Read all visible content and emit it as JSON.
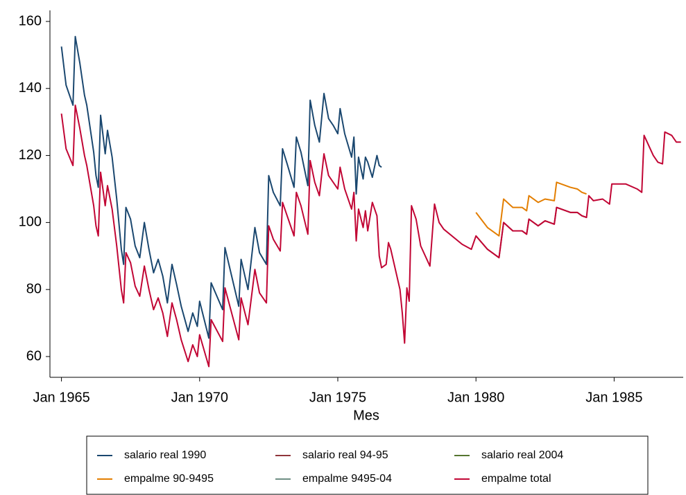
{
  "chart_data": {
    "type": "line",
    "x_label": "Mes",
    "x": [
      "Jan 1965",
      "Mar 1965",
      "Jun 1965",
      "Jul 1965",
      "Sep 1965",
      "Nov 1965",
      "Dec 1965",
      "Mar 1966",
      "Apr 1966",
      "May 1966",
      "Jun 1966",
      "Aug 1966",
      "Sep 1966",
      "Nov 1966",
      "Jan 1967",
      "Mar 1967",
      "Apr 1967",
      "May 1967",
      "Jul 1967",
      "Sep 1967",
      "Nov 1967",
      "Jan 1968",
      "Mar 1968",
      "May 1968",
      "Jul 1968",
      "Sep 1968",
      "Nov 1968",
      "Jan 1969",
      "Mar 1969",
      "May 1969",
      "Aug 1969",
      "Oct 1969",
      "Dec 1969",
      "Jan 1970",
      "May 1970",
      "Jun 1970",
      "Nov 1970",
      "Dec 1970",
      "Jun 1971",
      "Jul 1971",
      "Oct 1971",
      "Jan 1972",
      "Mar 1972",
      "Jun 1972",
      "Jul 1972",
      "Sep 1972",
      "Dec 1972",
      "Jan 1973",
      "Mar 1973",
      "Jun 1973",
      "Jul 1973",
      "Sep 1973",
      "Dec 1973",
      "Jan 1974",
      "Mar 1974",
      "May 1974",
      "Jul 1974",
      "Sep 1974",
      "Nov 1974",
      "Jan 1975",
      "Feb 1975",
      "Apr 1975",
      "Jul 1975",
      "Aug 1975",
      "Sep 1975",
      "Oct 1975",
      "Dec 1975",
      "Jan 1976",
      "Feb 1976",
      "Apr 1976",
      "Jun 1976",
      "Jul 1976",
      "Aug 1976",
      "Oct 1976",
      "Nov 1976",
      "Dec 1976",
      "Apr 1977",
      "May 1977",
      "Jun 1977",
      "Jul 1977",
      "Aug 1977",
      "Sep 1977",
      "Nov 1977",
      "Jan 1978",
      "May 1978",
      "Jul 1978",
      "Sep 1978",
      "Nov 1978",
      "Jul 1979",
      "Nov 1979",
      "Jan 1980",
      "Jun 1980",
      "Nov 1980",
      "Jan 1981",
      "May 1981",
      "Sep 1981",
      "Nov 1981",
      "Dec 1981",
      "Apr 1982",
      "Jul 1982",
      "Nov 1982",
      "Dec 1982",
      "Jun 1983",
      "Sep 1983",
      "Nov 1983",
      "Jan 1984",
      "Feb 1984",
      "Apr 1984",
      "Aug 1984",
      "Nov 1984",
      "Dec 1984",
      "Jun 1985",
      "Nov 1985",
      "Jan 1986",
      "Feb 1986",
      "Jun 1986",
      "Aug 1986",
      "Oct 1986",
      "Nov 1986",
      "Feb 1987",
      "Apr 1987",
      "Jun 1987"
    ],
    "xlim": [
      "Aug 1964",
      "Jul 1987"
    ],
    "xticks": [
      "Jan 1965",
      "Jan 1970",
      "Jan 1975",
      "Jan 1980",
      "Jan 1985"
    ],
    "ylim": [
      53.8,
      163.3
    ],
    "yticks": [
      60,
      80,
      100,
      120,
      140,
      160
    ],
    "grid": false,
    "series": [
      {
        "name": "salario real 1990",
        "color": "#1a476f",
        "values": [
          152.5,
          141,
          135,
          155.5,
          147.5,
          138,
          135,
          121,
          114,
          110.5,
          132,
          120.5,
          127.5,
          119.5,
          107,
          92,
          87.5,
          104.5,
          101,
          93,
          89.5,
          100,
          92,
          85,
          89,
          84,
          76,
          87.5,
          81.5,
          75,
          67.5,
          73,
          69,
          76.5,
          65.5,
          82,
          74,
          92.5,
          75,
          89,
          80,
          98.5,
          91,
          87.5,
          114,
          109,
          105,
          122,
          117.5,
          110.5,
          125.5,
          121,
          111,
          136.5,
          129,
          124,
          138.5,
          131,
          129,
          126.5,
          134,
          126.5,
          119.5,
          125.5,
          108.5,
          119.5,
          113,
          119.5,
          118,
          113.5,
          120,
          117,
          116.5,
          null,
          null,
          null,
          null,
          null,
          null,
          null,
          null,
          null,
          null,
          null,
          null,
          null,
          null,
          null,
          null,
          null,
          null,
          null,
          null,
          null,
          null,
          null,
          null,
          null,
          null,
          null,
          null,
          null,
          null,
          null,
          null,
          null,
          null,
          null,
          null,
          null,
          null,
          null,
          null,
          null,
          null,
          null,
          null,
          null,
          null,
          null,
          null,
          null
        ]
      },
      {
        "name": "salario real 94-95",
        "color": "#90353b",
        "values": [
          null,
          null,
          null,
          null,
          null,
          null,
          null,
          null,
          null,
          null,
          null,
          null,
          null,
          null,
          null,
          null,
          null,
          null,
          null,
          null,
          null,
          null,
          null,
          null,
          null,
          null,
          null,
          null,
          null,
          null,
          null,
          null,
          null,
          null,
          null,
          null,
          null,
          null,
          null,
          null,
          null,
          null,
          null,
          null,
          null,
          null,
          null,
          null,
          null,
          null,
          null,
          null,
          null,
          null,
          null,
          null,
          null,
          null,
          null,
          null,
          null,
          null,
          null,
          null,
          null,
          null,
          null,
          null,
          null,
          null,
          null,
          null,
          null,
          null,
          null,
          null,
          null,
          null,
          null,
          null,
          null,
          null,
          null,
          null,
          null,
          null,
          null,
          null,
          null,
          null,
          96,
          92,
          89.5,
          100,
          97.5,
          97.5,
          96.5,
          101,
          99,
          100.5,
          99.5,
          104.5,
          103,
          103,
          102,
          101.5,
          null,
          null,
          null,
          null,
          null,
          null,
          null,
          null,
          null,
          null,
          null,
          null,
          null,
          null,
          null,
          null
        ]
      },
      {
        "name": "salario real 2004",
        "color": "#55752f",
        "values": [
          null,
          null,
          null,
          null,
          null,
          null,
          null,
          null,
          null,
          null,
          null,
          null,
          null,
          null,
          null,
          null,
          null,
          null,
          null,
          null,
          null,
          null,
          null,
          null,
          null,
          null,
          null,
          null,
          null,
          null,
          null,
          null,
          null,
          null,
          null,
          null,
          null,
          null,
          null,
          null,
          null,
          null,
          null,
          null,
          null,
          null,
          null,
          null,
          null,
          null,
          null,
          null,
          null,
          null,
          null,
          null,
          null,
          null,
          null,
          null,
          null,
          null,
          null,
          null,
          null,
          null,
          null,
          null,
          null,
          null,
          null,
          null,
          null,
          null,
          null,
          null,
          null,
          null,
          null,
          null,
          null,
          null,
          null,
          null,
          null,
          null,
          null,
          null,
          null,
          null,
          null,
          null,
          null,
          null,
          null,
          null,
          null,
          null,
          null,
          null,
          null,
          null,
          null,
          null,
          null,
          null,
          null,
          null,
          null,
          null,
          null,
          null,
          null,
          null,
          null,
          null,
          null,
          null,
          null,
          null,
          null,
          null
        ]
      },
      {
        "name": "empalme 90-9495",
        "color": "#e37e00",
        "values": [
          null,
          null,
          null,
          null,
          null,
          null,
          null,
          null,
          null,
          null,
          null,
          null,
          null,
          null,
          null,
          null,
          null,
          null,
          null,
          null,
          null,
          null,
          null,
          null,
          null,
          null,
          null,
          null,
          null,
          null,
          null,
          null,
          null,
          null,
          null,
          null,
          null,
          null,
          null,
          null,
          null,
          null,
          null,
          null,
          null,
          null,
          null,
          null,
          null,
          null,
          null,
          null,
          null,
          null,
          null,
          null,
          null,
          null,
          null,
          null,
          null,
          null,
          null,
          null,
          null,
          null,
          null,
          null,
          null,
          null,
          null,
          null,
          null,
          null,
          null,
          null,
          null,
          null,
          null,
          null,
          null,
          null,
          null,
          null,
          null,
          null,
          null,
          null,
          null,
          null,
          103,
          98.5,
          96,
          107,
          104.5,
          104.5,
          103.5,
          108,
          106,
          107,
          106.5,
          112,
          110.5,
          110,
          109,
          108.5,
          null,
          null,
          null,
          null,
          null,
          null,
          null,
          null,
          null,
          null,
          null,
          null,
          null,
          null,
          null,
          null
        ]
      },
      {
        "name": "empalme 9495-04",
        "color": "#6e8e84",
        "values": [
          null,
          null,
          null,
          null,
          null,
          null,
          null,
          null,
          null,
          null,
          null,
          null,
          null,
          null,
          null,
          null,
          null,
          null,
          null,
          null,
          null,
          null,
          null,
          null,
          null,
          null,
          null,
          null,
          null,
          null,
          null,
          null,
          null,
          null,
          null,
          null,
          null,
          null,
          null,
          null,
          null,
          null,
          null,
          null,
          null,
          null,
          null,
          null,
          null,
          null,
          null,
          null,
          null,
          null,
          null,
          null,
          null,
          null,
          null,
          null,
          null,
          null,
          null,
          null,
          null,
          null,
          null,
          null,
          null,
          null,
          null,
          null,
          null,
          null,
          null,
          null,
          null,
          null,
          null,
          null,
          null,
          null,
          null,
          null,
          null,
          null,
          null,
          null,
          null,
          null,
          null,
          null,
          null,
          null,
          null,
          null,
          null,
          null,
          null,
          null,
          null,
          null,
          null,
          null,
          null,
          null,
          null,
          null,
          null,
          null,
          null,
          null,
          null,
          null,
          null,
          null,
          null,
          null,
          null,
          null,
          null,
          null
        ]
      },
      {
        "name": "empalme total",
        "color": "#c10534",
        "values": [
          132.5,
          122,
          117,
          135,
          128,
          120,
          117,
          105,
          99,
          96,
          115,
          105,
          111,
          104,
          93,
          80,
          76,
          91,
          88,
          81,
          78,
          87,
          80,
          74,
          77.5,
          73,
          66,
          76,
          71,
          65,
          58.5,
          63.5,
          60,
          66.5,
          57,
          71,
          64.5,
          80.5,
          65,
          77.5,
          69.5,
          86,
          79,
          76,
          99,
          95,
          91.5,
          106,
          102,
          96,
          109,
          105,
          96.5,
          118.5,
          112,
          108,
          120.5,
          114,
          112,
          110,
          116.5,
          110,
          104,
          109,
          94.5,
          104,
          98.5,
          103.5,
          97.5,
          106,
          102,
          90,
          86.5,
          87.5,
          94,
          92,
          80,
          73,
          64,
          80.5,
          76.5,
          105,
          101,
          93,
          87,
          105.5,
          100,
          98,
          93.5,
          92,
          96,
          92,
          89.5,
          100,
          97.5,
          97.5,
          96.5,
          101,
          99,
          100.5,
          99.5,
          104.5,
          103,
          103,
          102,
          101.5,
          108,
          106.5,
          107,
          105.5,
          111.5,
          111.5,
          110,
          109,
          126,
          120,
          118,
          117.5,
          127,
          126,
          124,
          124
        ]
      }
    ]
  }
}
